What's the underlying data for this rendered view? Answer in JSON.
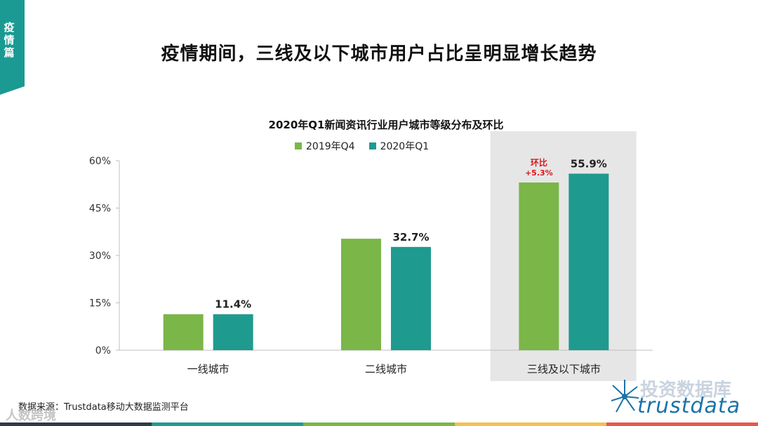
{
  "side_tab": {
    "label": "疫情篇"
  },
  "page_title": "疫情期间，三线及以下城市用户占比呈明显增长趋势",
  "source": "数据来源：Trustdata移动大数据监测平台",
  "watermark": "人数跨境",
  "logo": {
    "text": "投资数据库",
    "brand": "trustdata"
  },
  "colors": {
    "series_2019": "#7ab648",
    "series_2020": "#1f9a8f",
    "highlight_bg": "#e6e6e6",
    "note": "#d71920",
    "bottom": [
      "#2f3a46",
      "#1f9a8f",
      "#7ab648",
      "#f2c14e",
      "#e8584b"
    ]
  },
  "chart_data": {
    "type": "bar",
    "title": "2020年Q1新闻资讯行业用户城市等级分布及环比",
    "categories": [
      "一线城市",
      "二线城市",
      "三线及以下城市"
    ],
    "series": [
      {
        "name": "2019年Q4",
        "values": [
          11.4,
          35.3,
          53.1
        ]
      },
      {
        "name": "2020年Q1",
        "values": [
          11.4,
          32.7,
          55.9
        ]
      }
    ],
    "data_labels": [
      "11.4%",
      "32.7%",
      "55.9%"
    ],
    "yticks": [
      "0%",
      "15%",
      "30%",
      "45%",
      "60%"
    ],
    "ylim": [
      0,
      60
    ],
    "highlight_category": 2,
    "annotation": {
      "label": "环比",
      "value": "+5.3%"
    }
  }
}
